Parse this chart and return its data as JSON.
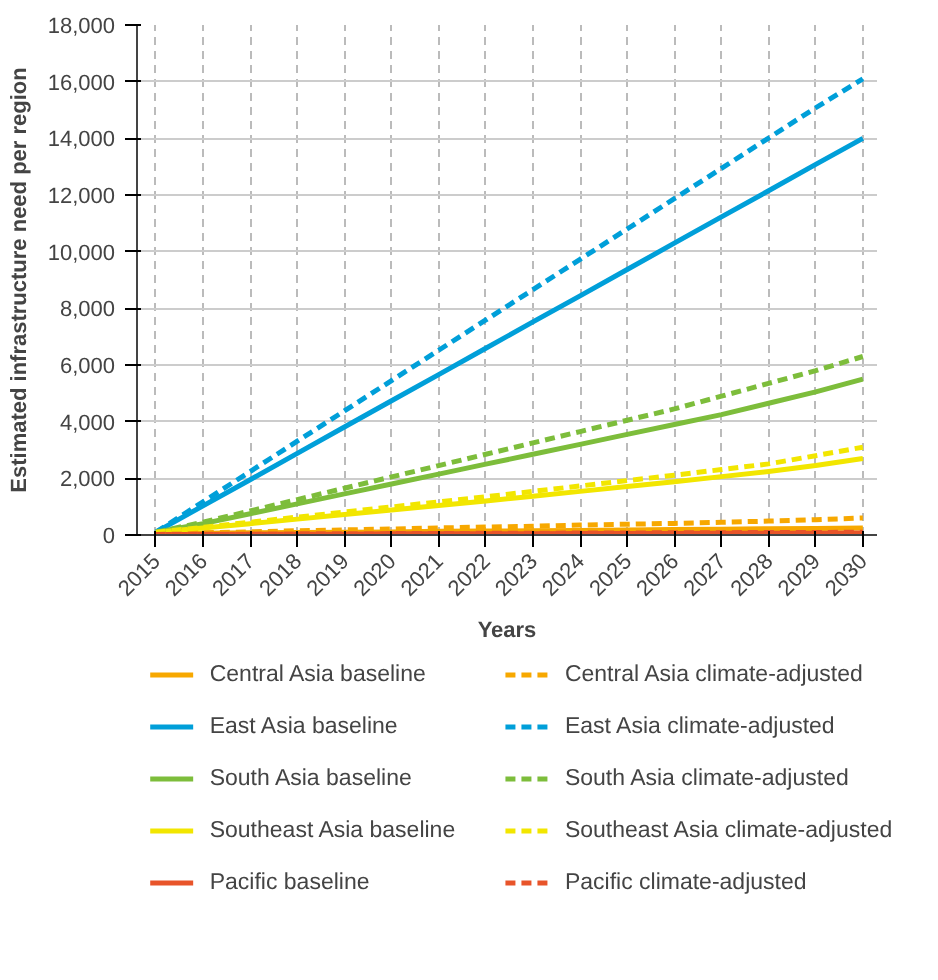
{
  "chart_data": {
    "type": "line",
    "xlabel": "Years",
    "ylabel": "Estimated infrastructure need per region",
    "x": [
      2015,
      2016,
      2017,
      2018,
      2019,
      2020,
      2021,
      2022,
      2023,
      2024,
      2025,
      2026,
      2027,
      2028,
      2029,
      2030
    ],
    "xlim": [
      2014.6,
      2030.3
    ],
    "xticks": [
      2015,
      2016,
      2017,
      2018,
      2019,
      2020,
      2021,
      2022,
      2023,
      2024,
      2025,
      2026,
      2027,
      2028,
      2029,
      2030
    ],
    "ylim": [
      0,
      18000
    ],
    "yticks": [
      {
        "value": 0,
        "label": "0"
      },
      {
        "value": 2000,
        "label": "2,000"
      },
      {
        "value": 4000,
        "label": "4,000"
      },
      {
        "value": 6000,
        "label": "6,000"
      },
      {
        "value": 8000,
        "label": "8,000"
      },
      {
        "value": 10000,
        "label": "10,000"
      },
      {
        "value": 12000,
        "label": "12,000"
      },
      {
        "value": 14000,
        "label": "14,000"
      },
      {
        "value": 16000,
        "label": "16,000"
      },
      {
        "value": 18000,
        "label": "18,000"
      }
    ],
    "grid": true,
    "legend": "bottom",
    "marker": "none",
    "series": [
      {
        "name": "Central Asia baseline",
        "color": "#f7a800",
        "line_style": "solid",
        "values": [
          50,
          60,
          80,
          90,
          100,
          110,
          130,
          140,
          150,
          160,
          180,
          190,
          200,
          220,
          230,
          250
        ]
      },
      {
        "name": "East Asia baseline",
        "color": "#009fd9",
        "line_style": "solid",
        "values": [
          100,
          1030,
          1950,
          2880,
          3810,
          4740,
          5660,
          6590,
          7520,
          8440,
          9370,
          10300,
          11230,
          12150,
          13080,
          14000
        ]
      },
      {
        "name": "South Asia baseline",
        "color": "#7dbd3b",
        "line_style": "solid",
        "values": [
          100,
          400,
          750,
          1100,
          1450,
          1800,
          2150,
          2500,
          2850,
          3200,
          3550,
          3900,
          4250,
          4650,
          5050,
          5500
        ]
      },
      {
        "name": "Southeast Asia baseline",
        "color": "#f2e600",
        "line_style": "solid",
        "values": [
          100,
          250,
          400,
          560,
          720,
          880,
          1040,
          1200,
          1370,
          1540,
          1710,
          1880,
          2060,
          2240,
          2450,
          2700
        ]
      },
      {
        "name": "Pacific baseline",
        "color": "#e8542a",
        "line_style": "solid",
        "values": [
          20,
          20,
          30,
          30,
          30,
          40,
          40,
          40,
          40,
          50,
          50,
          50,
          60,
          60,
          60,
          70
        ]
      },
      {
        "name": "Central Asia climate-adjusted",
        "color": "#f7a800",
        "line_style": "dashed",
        "values": [
          50,
          80,
          110,
          150,
          180,
          210,
          250,
          280,
          310,
          350,
          380,
          410,
          450,
          490,
          540,
          600
        ]
      },
      {
        "name": "East Asia climate-adjusted",
        "color": "#009fd9",
        "line_style": "dashed",
        "values": [
          100,
          1170,
          2240,
          3310,
          4380,
          5450,
          6520,
          7590,
          8660,
          9730,
          10800,
          11870,
          12940,
          14010,
          15080,
          16100
        ]
      },
      {
        "name": "South Asia climate-adjusted",
        "color": "#7dbd3b",
        "line_style": "dashed",
        "values": [
          100,
          450,
          850,
          1250,
          1650,
          2050,
          2450,
          2850,
          3250,
          3650,
          4050,
          4450,
          4900,
          5350,
          5800,
          6300
        ]
      },
      {
        "name": "Southeast Asia climate-adjusted",
        "color": "#f2e600",
        "line_style": "dashed",
        "values": [
          100,
          270,
          450,
          630,
          810,
          990,
          1170,
          1350,
          1540,
          1730,
          1920,
          2110,
          2310,
          2510,
          2800,
          3100
        ]
      },
      {
        "name": "Pacific climate-adjusted",
        "color": "#e8542a",
        "line_style": "dashed",
        "values": [
          20,
          30,
          30,
          40,
          40,
          50,
          50,
          60,
          60,
          70,
          70,
          80,
          80,
          90,
          90,
          100
        ]
      }
    ]
  }
}
